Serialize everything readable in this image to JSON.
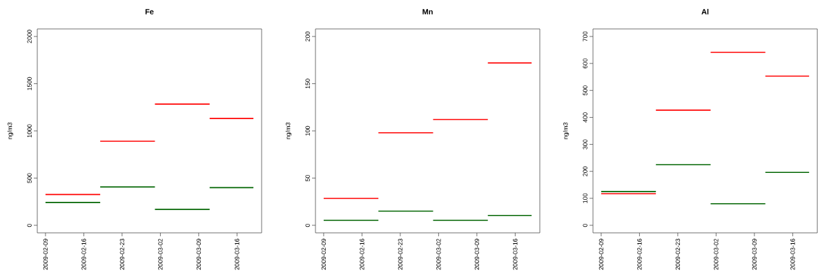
{
  "chart_data": [
    {
      "type": "line",
      "title": "Fe",
      "ylabel": "ng/m3",
      "xlim": [
        "2009-02-07T12:00",
        "2009-03-20T12:00"
      ],
      "xticks": [
        "2009-02-09",
        "2009-02-16",
        "2009-02-23",
        "2009-03-02",
        "2009-03-09",
        "2009-03-16"
      ],
      "ylim": [
        -80,
        2080
      ],
      "yticks": [
        0,
        500,
        1000,
        1500,
        2000
      ],
      "series": [
        {
          "color": "#ff0000",
          "x": [
            "2009-02-09",
            "2009-02-19"
          ],
          "values": [
            326,
            326
          ]
        },
        {
          "color": "#ff0000",
          "x": [
            "2009-02-19",
            "2009-03-01"
          ],
          "values": [
            890,
            890
          ]
        },
        {
          "color": "#ff0000",
          "x": [
            "2009-03-01",
            "2009-03-11"
          ],
          "values": [
            1284,
            1284
          ]
        },
        {
          "color": "#ff0000",
          "x": [
            "2009-03-11",
            "2009-03-19"
          ],
          "values": [
            1132,
            1132
          ]
        },
        {
          "color": "#006400",
          "x": [
            "2009-02-09",
            "2009-02-19"
          ],
          "values": [
            242,
            242
          ]
        },
        {
          "color": "#006400",
          "x": [
            "2009-02-19",
            "2009-03-01"
          ],
          "values": [
            406,
            406
          ]
        },
        {
          "color": "#006400",
          "x": [
            "2009-03-01",
            "2009-03-11"
          ],
          "values": [
            169,
            169
          ]
        },
        {
          "color": "#006400",
          "x": [
            "2009-03-11",
            "2009-03-19"
          ],
          "values": [
            399,
            399
          ]
        }
      ]
    },
    {
      "type": "line",
      "title": "Mn",
      "ylabel": "ng/m3",
      "xlim": [
        "2009-02-07T12:00",
        "2009-03-20T12:00"
      ],
      "xticks": [
        "2009-02-09",
        "2009-02-16",
        "2009-02-23",
        "2009-03-02",
        "2009-03-09",
        "2009-03-16"
      ],
      "ylim": [
        -8,
        208
      ],
      "yticks": [
        0,
        50,
        100,
        150,
        200
      ],
      "series": [
        {
          "color": "#ff0000",
          "x": [
            "2009-02-09",
            "2009-02-19"
          ],
          "values": [
            28.5,
            28.5
          ]
        },
        {
          "color": "#ff0000",
          "x": [
            "2009-02-19",
            "2009-03-01"
          ],
          "values": [
            98,
            98
          ]
        },
        {
          "color": "#ff0000",
          "x": [
            "2009-03-01",
            "2009-03-11"
          ],
          "values": [
            112,
            112
          ]
        },
        {
          "color": "#ff0000",
          "x": [
            "2009-03-11",
            "2009-03-19"
          ],
          "values": [
            172,
            172
          ]
        },
        {
          "color": "#006400",
          "x": [
            "2009-02-09",
            "2009-02-19"
          ],
          "values": [
            5.3,
            5.3
          ]
        },
        {
          "color": "#006400",
          "x": [
            "2009-02-19",
            "2009-03-01"
          ],
          "values": [
            15,
            15
          ]
        },
        {
          "color": "#006400",
          "x": [
            "2009-03-01",
            "2009-03-11"
          ],
          "values": [
            5.3,
            5.3
          ]
        },
        {
          "color": "#006400",
          "x": [
            "2009-03-11",
            "2009-03-19"
          ],
          "values": [
            10.4,
            10.4
          ]
        }
      ]
    },
    {
      "type": "line",
      "title": "Al",
      "ylabel": "ng/m3",
      "xlim": [
        "2009-02-07T12:00",
        "2009-03-20T12:00"
      ],
      "xticks": [
        "2009-02-09",
        "2009-02-16",
        "2009-02-23",
        "2009-03-02",
        "2009-03-09",
        "2009-03-16"
      ],
      "ylim": [
        -28,
        728
      ],
      "yticks": [
        0,
        100,
        200,
        300,
        400,
        500,
        600,
        700
      ],
      "series": [
        {
          "color": "#ff0000",
          "x": [
            "2009-02-09",
            "2009-02-19"
          ],
          "values": [
            117,
            117
          ]
        },
        {
          "color": "#ff0000",
          "x": [
            "2009-02-19",
            "2009-03-01"
          ],
          "values": [
            427,
            427
          ]
        },
        {
          "color": "#ff0000",
          "x": [
            "2009-03-01",
            "2009-03-11"
          ],
          "values": [
            641,
            641
          ]
        },
        {
          "color": "#ff0000",
          "x": [
            "2009-03-11",
            "2009-03-19"
          ],
          "values": [
            553,
            553
          ]
        },
        {
          "color": "#006400",
          "x": [
            "2009-02-09",
            "2009-02-19"
          ],
          "values": [
            125,
            125
          ]
        },
        {
          "color": "#006400",
          "x": [
            "2009-02-19",
            "2009-03-01"
          ],
          "values": [
            225,
            225
          ]
        },
        {
          "color": "#006400",
          "x": [
            "2009-03-01",
            "2009-03-11"
          ],
          "values": [
            80,
            80
          ]
        },
        {
          "color": "#006400",
          "x": [
            "2009-03-11",
            "2009-03-19"
          ],
          "values": [
            196,
            196
          ]
        }
      ]
    }
  ]
}
